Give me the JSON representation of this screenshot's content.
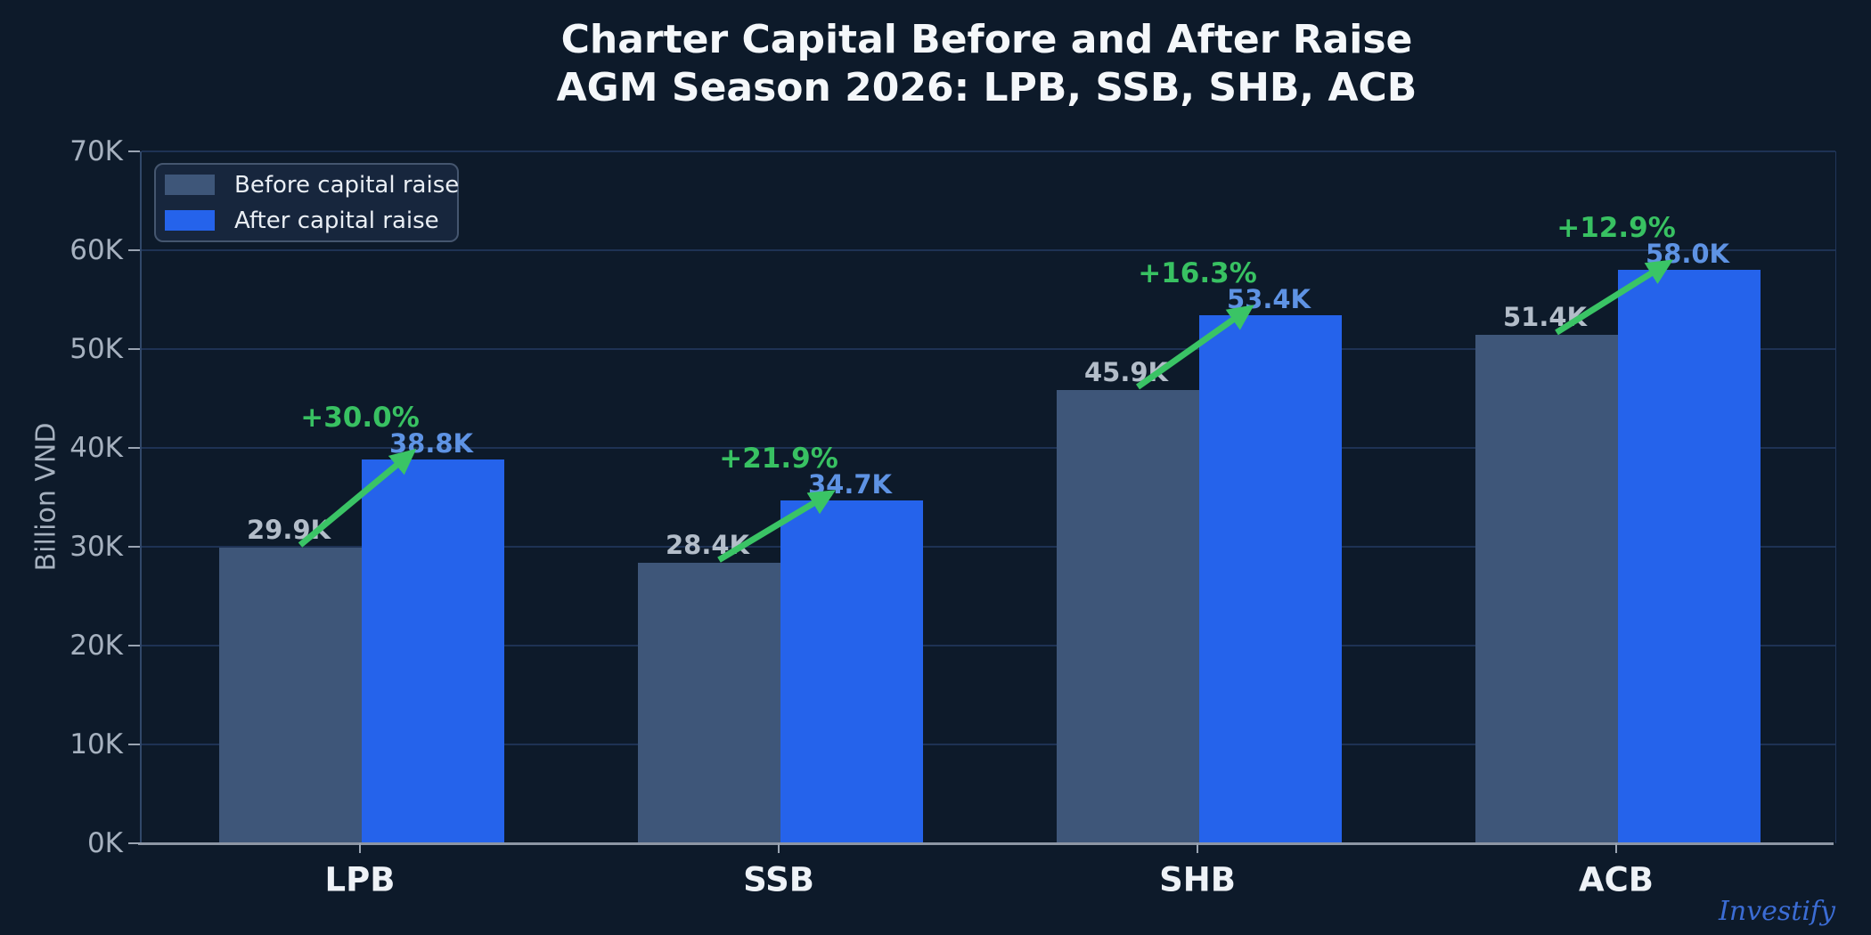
{
  "title": {
    "line1": "Charter Capital Before and After Raise",
    "line2": "AGM Season 2026: LPB, SSB, SHB, ACB"
  },
  "watermark": "Investify",
  "colors": {
    "background": "#0d1a2a",
    "before_bar": "#3e5679",
    "after_bar": "#2563eb",
    "gridline": "#1e3254",
    "axis_line": "#8d96a4",
    "before_label": "#b3bdc9",
    "after_label": "#5e93e4",
    "percent_green": "#38c162",
    "arrow_green": "#3ac465",
    "title_text": "#f4f7fa",
    "ytick_text": "#a6b1bf",
    "xtick_text": "#eef2f7",
    "watermark_blue": "#3b6cd4"
  },
  "chart_data": {
    "type": "bar",
    "categories": [
      "LPB",
      "SSB",
      "SHB",
      "ACB"
    ],
    "series": [
      {
        "name": "Before capital raise",
        "color": "#3e5679",
        "values": [
          29.9,
          28.4,
          45.9,
          51.4
        ],
        "labels": [
          "29.9K",
          "28.4K",
          "45.9K",
          "51.4K"
        ]
      },
      {
        "name": "After capital raise",
        "color": "#2563eb",
        "values": [
          38.8,
          34.7,
          53.4,
          58.0
        ],
        "labels": [
          "38.8K",
          "34.7K",
          "53.4K",
          "58.0K"
        ]
      }
    ],
    "pct_changes": [
      "+30.0%",
      "+21.9%",
      "+16.3%",
      "+12.9%"
    ],
    "ylabel": "Billion VND",
    "xlabel": "",
    "ylim": [
      0,
      70
    ],
    "y_tick_step": 10,
    "y_tick_labels": [
      "0K",
      "10K",
      "20K",
      "30K",
      "40K",
      "50K",
      "60K",
      "70K"
    ],
    "grid": true,
    "legend_position": "upper-left",
    "unit": "thousand billion VND (K)"
  }
}
